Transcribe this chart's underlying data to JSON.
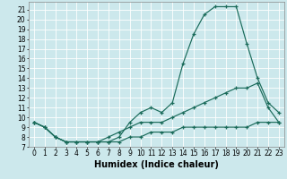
{
  "title": "",
  "xlabel": "Humidex (Indice chaleur)",
  "xlim": [
    -0.5,
    23.5
  ],
  "ylim": [
    7,
    21.8
  ],
  "yticks": [
    7,
    8,
    9,
    10,
    11,
    12,
    13,
    14,
    15,
    16,
    17,
    18,
    19,
    20,
    21
  ],
  "xticks": [
    0,
    1,
    2,
    3,
    4,
    5,
    6,
    7,
    8,
    9,
    10,
    11,
    12,
    13,
    14,
    15,
    16,
    17,
    18,
    19,
    20,
    21,
    22,
    23
  ],
  "bg_color": "#cce8ec",
  "line_color": "#1a6b5a",
  "grid_color": "#ffffff",
  "line1_x": [
    0,
    1,
    2,
    3,
    4,
    5,
    6,
    7,
    8,
    9,
    10,
    11,
    12,
    13,
    14,
    15,
    16,
    17,
    18,
    19,
    20,
    21,
    22,
    23
  ],
  "line1_y": [
    9.5,
    9.0,
    8.0,
    7.5,
    7.5,
    7.5,
    7.5,
    7.5,
    8.0,
    9.5,
    10.5,
    11.0,
    10.5,
    11.5,
    15.5,
    18.5,
    20.5,
    21.3,
    21.3,
    21.3,
    17.5,
    14.0,
    11.5,
    10.5
  ],
  "line2_x": [
    0,
    1,
    2,
    3,
    4,
    5,
    6,
    7,
    8,
    9,
    10,
    11,
    12,
    13,
    14,
    15,
    16,
    17,
    18,
    19,
    20,
    21,
    22,
    23
  ],
  "line2_y": [
    9.5,
    9.0,
    8.0,
    7.5,
    7.5,
    7.5,
    7.5,
    8.0,
    8.5,
    9.0,
    9.5,
    9.5,
    9.5,
    10.0,
    10.5,
    11.0,
    11.5,
    12.0,
    12.5,
    13.0,
    13.0,
    13.5,
    11.0,
    9.5
  ],
  "line3_x": [
    0,
    1,
    2,
    3,
    4,
    5,
    6,
    7,
    8,
    9,
    10,
    11,
    12,
    13,
    14,
    15,
    16,
    17,
    18,
    19,
    20,
    21,
    22,
    23
  ],
  "line3_y": [
    9.5,
    9.0,
    8.0,
    7.5,
    7.5,
    7.5,
    7.5,
    7.5,
    7.5,
    8.0,
    8.0,
    8.5,
    8.5,
    8.5,
    9.0,
    9.0,
    9.0,
    9.0,
    9.0,
    9.0,
    9.0,
    9.5,
    9.5,
    9.5
  ],
  "label_fontsize": 7,
  "tick_fontsize": 5.5
}
